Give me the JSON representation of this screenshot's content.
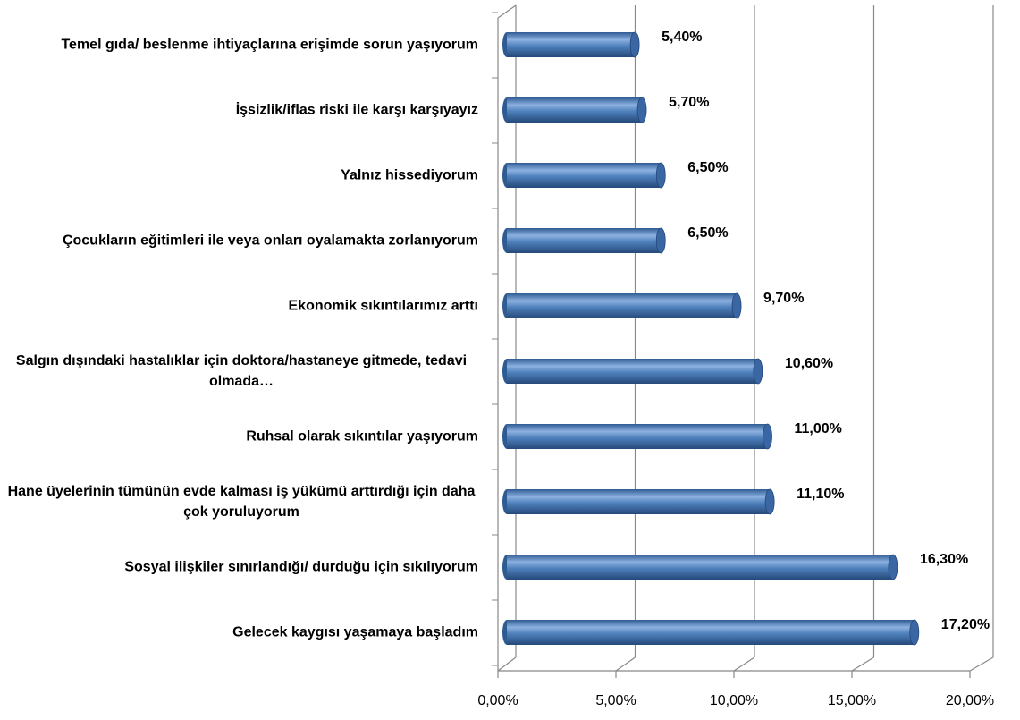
{
  "chart_data": {
    "type": "bar",
    "orientation": "horizontal",
    "categories": [
      "Temel gıda/ beslenme ihtiyaçlarına erişimde sorun yaşıyorum",
      "İşsizlik/iflas riski ile karşı karşıyayız",
      "Yalnız hissediyorum",
      "Çocukların eğitimleri ile veya onları oyalamakta zorlanıyorum",
      "Ekonomik sıkıntılarımız arttı",
      "Salgın dışındaki hastalıklar için doktora/hastaneye gitmede, tedavi olmada…",
      "Ruhsal olarak sıkıntılar yaşıyorum",
      "Hane üyelerinin tümünün evde kalması iş yükümü arttırdığı için daha çok yoruluyorum",
      "Sosyal ilişkiler sınırlandığı/ durduğu için sıkılıyorum",
      "Gelecek kaygısı yaşamaya başladım"
    ],
    "values": [
      5.4,
      5.7,
      6.5,
      6.5,
      9.7,
      10.6,
      11.0,
      11.1,
      16.3,
      17.2
    ],
    "value_labels": [
      "5,40%",
      "5,70%",
      "6,50%",
      "6,50%",
      "9,70%",
      "10,60%",
      "11,00%",
      "11,10%",
      "16,30%",
      "17,20%"
    ],
    "color": "#4f81bd",
    "xlim": [
      0,
      20
    ],
    "xticks": [
      {
        "value": 0,
        "label": "0,00%"
      },
      {
        "value": 5,
        "label": "5,00%"
      },
      {
        "value": 10,
        "label": "10,00%"
      },
      {
        "value": 15,
        "label": "15,00%"
      },
      {
        "value": 20,
        "label": "20,00%"
      }
    ],
    "grid": true
  }
}
